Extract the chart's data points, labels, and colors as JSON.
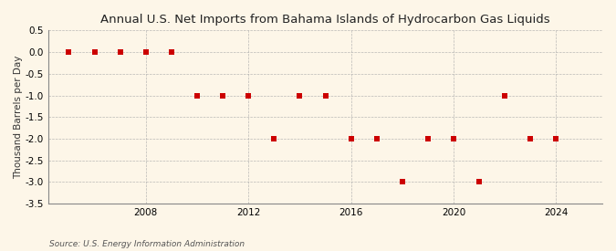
{
  "title": "Annual U.S. Net Imports from Bahama Islands of Hydrocarbon Gas Liquids",
  "ylabel": "Thousand Barrels per Day",
  "source": "Source: U.S. Energy Information Administration",
  "years": [
    2005,
    2006,
    2007,
    2008,
    2009,
    2010,
    2011,
    2012,
    2013,
    2014,
    2015,
    2016,
    2017,
    2018,
    2019,
    2020,
    2021,
    2022,
    2023,
    2024
  ],
  "values": [
    0,
    0,
    0,
    0,
    0,
    -1,
    -1,
    -1,
    -2,
    -1,
    -1,
    -2,
    -2,
    -3,
    -2,
    -2,
    -3,
    -1,
    -2,
    -2
  ],
  "ylim": [
    -3.5,
    0.5
  ],
  "yticks": [
    0.5,
    0.0,
    -0.5,
    -1.0,
    -1.5,
    -2.0,
    -2.5,
    -3.0,
    -3.5
  ],
  "xlim": [
    2004.2,
    2025.8
  ],
  "xticks": [
    2008,
    2012,
    2016,
    2020,
    2024
  ],
  "marker_color": "#cc0000",
  "marker_size": 4,
  "grid_color": "#aaaaaa",
  "bg_color": "#fdf6e8",
  "plot_bg_color": "#fdf6e8",
  "title_fontsize": 9.5,
  "label_fontsize": 7.5,
  "tick_fontsize": 7.5,
  "source_fontsize": 6.5
}
